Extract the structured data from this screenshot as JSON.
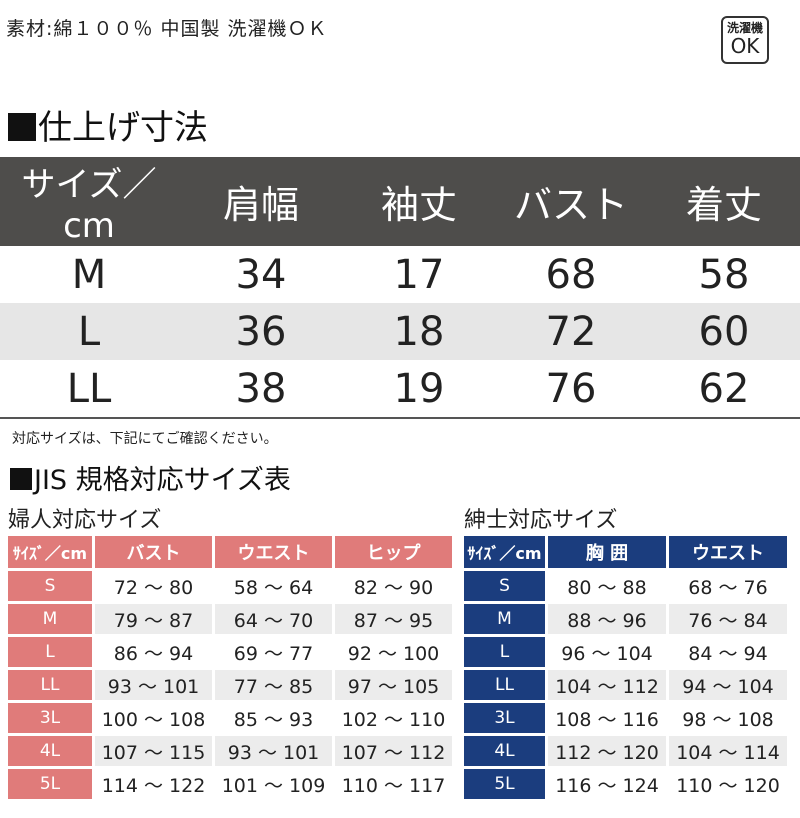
{
  "material": "素材:綿１００％ 中国製 洗濯機ＯＫ",
  "wash_badge": {
    "line1": "洗濯機",
    "line2": "OK"
  },
  "finished": {
    "title": "仕上げ寸法",
    "headers": [
      "サイズ／cm",
      "肩幅",
      "袖丈",
      "バスト",
      "着丈"
    ],
    "rows": [
      [
        "M",
        "34",
        "17",
        "68",
        "58"
      ],
      [
        "L",
        "36",
        "18",
        "72",
        "60"
      ],
      [
        "LL",
        "38",
        "19",
        "76",
        "62"
      ]
    ]
  },
  "note": "対応サイズは、下記にてご確認ください。",
  "jis_title": "JIS 規格対応サイズ表",
  "women": {
    "title": "婦人対応サイズ",
    "headers": [
      "ｻｲｽﾞ／cm",
      "バスト",
      "ウエスト",
      "ヒップ"
    ],
    "rows": [
      [
        "S",
        "72 ～ 80",
        "58 ～ 64",
        "82 ～ 90"
      ],
      [
        "M",
        "79 ～ 87",
        "64 ～ 70",
        "87 ～ 95"
      ],
      [
        "L",
        "86 ～ 94",
        "69 ～ 77",
        "92 ～ 100"
      ],
      [
        "LL",
        "93 ～ 101",
        "77 ～ 85",
        "97 ～ 105"
      ],
      [
        "3L",
        "100 ～ 108",
        "85 ～ 93",
        "102 ～ 110"
      ],
      [
        "4L",
        "107 ～ 115",
        "93 ～ 101",
        "107 ～ 112"
      ],
      [
        "5L",
        "114 ～ 122",
        "101 ～ 109",
        "110 ～ 117"
      ]
    ]
  },
  "men": {
    "title": "紳士対応サイズ",
    "headers": [
      "ｻｲｽﾞ／cm",
      "胸 囲",
      "ウエスト"
    ],
    "rows": [
      [
        "S",
        "80 ～ 88",
        "68 ～ 76"
      ],
      [
        "M",
        "88 ～ 96",
        "76 ～ 84"
      ],
      [
        "L",
        "96 ～ 104",
        "84 ～ 94"
      ],
      [
        "LL",
        "104 ～ 112",
        "94 ～ 104"
      ],
      [
        "3L",
        "108 ～ 116",
        "98 ～ 108"
      ],
      [
        "4L",
        "112 ～ 120",
        "104 ～ 114"
      ],
      [
        "5L",
        "116 ～ 124",
        "110 ～ 120"
      ]
    ]
  },
  "colors": {
    "women_accent": "#e07b7a",
    "men_accent": "#1b3d7e",
    "header_dark": "#4e4d4b",
    "row_grey": "#e6e6e6"
  }
}
